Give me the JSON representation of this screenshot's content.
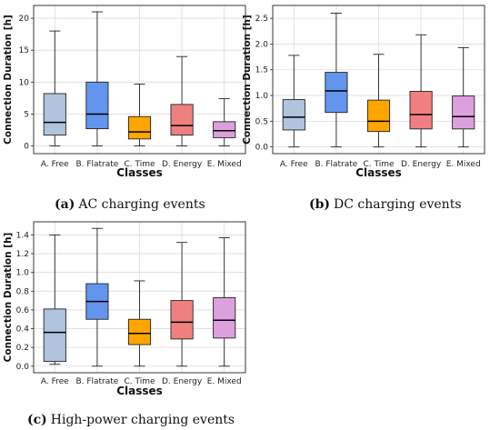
{
  "colors": {
    "A. Free": "#b0c4de",
    "B. Flatrate": "#6495ed",
    "C. Time": "#ffa500",
    "D. Energy": "#f08080",
    "E. Mixed": "#dda0dd"
  },
  "chart_data": [
    {
      "type": "box",
      "xlabel": "Classes",
      "ylabel": "Connection Duration [h]",
      "ylim": [
        -1.2,
        22
      ],
      "yticks": [
        0,
        5,
        10,
        15,
        20
      ],
      "grid": true,
      "caption_label": "(a)",
      "caption_text": "AC charging events",
      "categories": [
        "A. Free",
        "B. Flatrate",
        "C. Time",
        "D. Energy",
        "E. Mixed"
      ],
      "boxes": [
        {
          "whislo": 0.0,
          "q1": 1.7,
          "med": 3.7,
          "q3": 8.2,
          "whishi": 18.0
        },
        {
          "whislo": 0.0,
          "q1": 2.7,
          "med": 5.0,
          "q3": 10.0,
          "whishi": 21.0
        },
        {
          "whislo": 0.0,
          "q1": 1.1,
          "med": 2.2,
          "q3": 4.6,
          "whishi": 9.7
        },
        {
          "whislo": 0.0,
          "q1": 1.7,
          "med": 3.2,
          "q3": 6.5,
          "whishi": 14.0
        },
        {
          "whislo": 0.0,
          "q1": 1.3,
          "med": 2.4,
          "q3": 3.8,
          "whishi": 7.4
        }
      ]
    },
    {
      "type": "box",
      "xlabel": "Classes",
      "ylabel": "Connection Duration [h]",
      "ylim": [
        -0.13,
        2.75
      ],
      "yticks": [
        0.0,
        0.5,
        1.0,
        1.5,
        2.0,
        2.5
      ],
      "ytick_decimals": 1,
      "grid": true,
      "caption_label": "(b)",
      "caption_text": "DC charging events",
      "categories": [
        "A. Free",
        "B. Flatrate",
        "C. Time",
        "D. Energy",
        "E. Mixed"
      ],
      "boxes": [
        {
          "whislo": 0.0,
          "q1": 0.33,
          "med": 0.58,
          "q3": 0.92,
          "whishi": 1.78
        },
        {
          "whislo": 0.0,
          "q1": 0.67,
          "med": 1.09,
          "q3": 1.45,
          "whishi": 2.6
        },
        {
          "whislo": 0.0,
          "q1": 0.3,
          "med": 0.5,
          "q3": 0.91,
          "whishi": 1.8
        },
        {
          "whislo": 0.0,
          "q1": 0.35,
          "med": 0.63,
          "q3": 1.08,
          "whishi": 2.18
        },
        {
          "whislo": 0.0,
          "q1": 0.35,
          "med": 0.59,
          "q3": 0.99,
          "whishi": 1.93
        }
      ]
    },
    {
      "type": "box",
      "xlabel": "Classes",
      "ylabel": "Connection Duration [h]",
      "ylim": [
        -0.07,
        1.54
      ],
      "yticks": [
        0.0,
        0.2,
        0.4,
        0.6,
        0.8,
        1.0,
        1.2,
        1.4
      ],
      "ytick_decimals": 1,
      "grid": true,
      "caption_label": "(c)",
      "caption_text": "High-power charging events",
      "categories": [
        "A. Free",
        "B. Flatrate",
        "C. Time",
        "D. Energy",
        "E. Mixed"
      ],
      "boxes": [
        {
          "whislo": 0.02,
          "q1": 0.05,
          "med": 0.36,
          "q3": 0.61,
          "whishi": 1.4
        },
        {
          "whislo": 0.0,
          "q1": 0.5,
          "med": 0.69,
          "q3": 0.88,
          "whishi": 1.47
        },
        {
          "whislo": 0.0,
          "q1": 0.23,
          "med": 0.35,
          "q3": 0.5,
          "whishi": 0.91
        },
        {
          "whislo": 0.0,
          "q1": 0.29,
          "med": 0.47,
          "q3": 0.7,
          "whishi": 1.32
        },
        {
          "whislo": 0.0,
          "q1": 0.3,
          "med": 0.49,
          "q3": 0.73,
          "whishi": 1.37
        }
      ]
    }
  ]
}
